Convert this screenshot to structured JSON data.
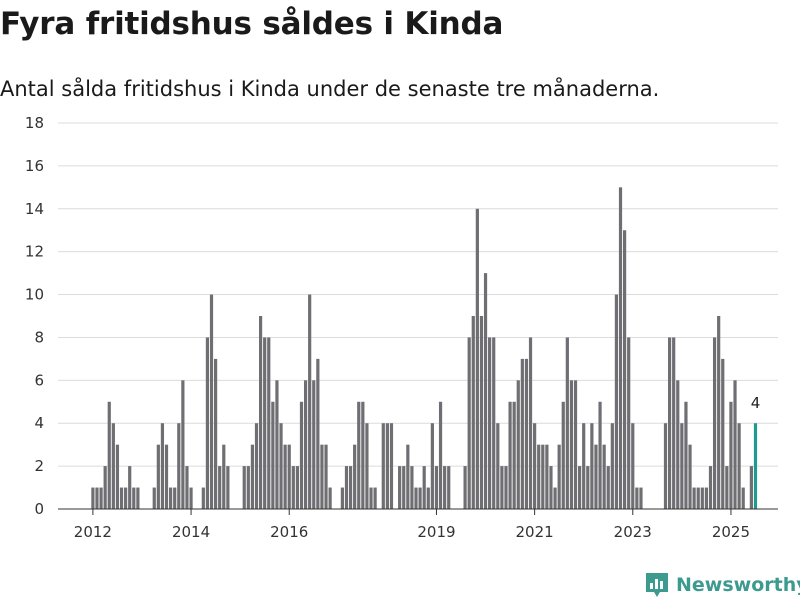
{
  "header": {
    "title": "Fyra fritidshus såldes i Kinda",
    "subtitle": "Antal sålda fritidshus i Kinda under de senaste tre månaderna."
  },
  "brand": {
    "name": "Newsworthy"
  },
  "colors": {
    "bar": "#6f6e73",
    "highlight": "#1f9a8f",
    "grid": "#dcdcdc",
    "brand": "#3d9a8f"
  },
  "chart_data": {
    "type": "bar",
    "title": "Fyra fritidshus såldes i Kinda",
    "subtitle": "Antal sålda fritidshus i Kinda under de senaste tre månaderna.",
    "xlabel": "",
    "ylabel": "",
    "ylim": [
      0,
      18
    ],
    "yticks": [
      0,
      2,
      4,
      6,
      8,
      10,
      12,
      14,
      16,
      18
    ],
    "xticks": [
      {
        "label": "2012",
        "index": 0
      },
      {
        "label": "2014",
        "index": 24
      },
      {
        "label": "2016",
        "index": 48
      },
      {
        "label": "2019",
        "index": 84
      },
      {
        "label": "2021",
        "index": 108
      },
      {
        "label": "2023",
        "index": 132
      },
      {
        "label": "2025",
        "index": 156
      }
    ],
    "grid": true,
    "frequency": "monthly, rolling three-month totals",
    "values": [
      1,
      1,
      1,
      2,
      5,
      4,
      3,
      1,
      1,
      2,
      1,
      1,
      0,
      0,
      0,
      1,
      3,
      4,
      3,
      1,
      1,
      4,
      6,
      2,
      1,
      0,
      0,
      1,
      8,
      10,
      7,
      2,
      3,
      2,
      0,
      0,
      0,
      2,
      2,
      3,
      4,
      9,
      8,
      8,
      5,
      6,
      4,
      3,
      3,
      2,
      2,
      5,
      6,
      10,
      6,
      7,
      3,
      3,
      1,
      0,
      0,
      1,
      2,
      2,
      3,
      5,
      5,
      4,
      1,
      1,
      0,
      4,
      4,
      4,
      0,
      2,
      2,
      3,
      2,
      1,
      1,
      2,
      1,
      4,
      2,
      5,
      2,
      2,
      0,
      0,
      0,
      2,
      8,
      9,
      14,
      9,
      11,
      8,
      8,
      4,
      2,
      2,
      5,
      5,
      6,
      7,
      7,
      8,
      4,
      3,
      3,
      3,
      2,
      1,
      3,
      5,
      8,
      6,
      6,
      2,
      4,
      2,
      4,
      3,
      5,
      3,
      2,
      4,
      10,
      15,
      13,
      8,
      4,
      1,
      1,
      0,
      0,
      0,
      0,
      0,
      4,
      8,
      8,
      6,
      4,
      5,
      3,
      1,
      1,
      1,
      1,
      2,
      8,
      9,
      7,
      2,
      5,
      6,
      4,
      1,
      0,
      2,
      4
    ],
    "highlight_index": 162,
    "annotations": [
      {
        "index": 162,
        "text": "4"
      }
    ]
  }
}
